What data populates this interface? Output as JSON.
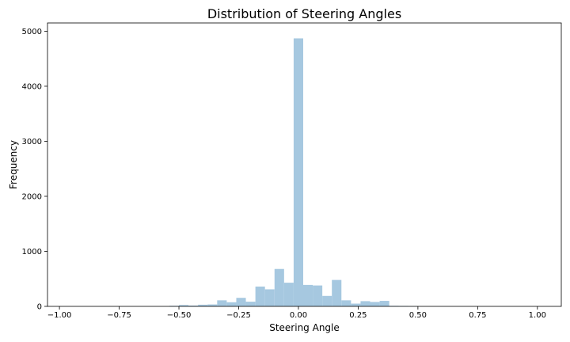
{
  "chart_data": {
    "type": "bar",
    "title": "Distribution of Steering Angles",
    "xlabel": "Steering Angle",
    "ylabel": "Frequency",
    "xlim": [
      -1.05,
      1.1
    ],
    "ylim": [
      0,
      5150
    ],
    "grid": false,
    "bar_color": "#a6c8e0",
    "bin_width": 0.04,
    "x_ticks": [
      {
        "value": -1.0,
        "label": "−1.00"
      },
      {
        "value": -0.75,
        "label": "−0.75"
      },
      {
        "value": -0.5,
        "label": "−0.50"
      },
      {
        "value": -0.25,
        "label": "−0.25"
      },
      {
        "value": 0.0,
        "label": "0.00"
      },
      {
        "value": 0.25,
        "label": "0.25"
      },
      {
        "value": 0.5,
        "label": "0.50"
      },
      {
        "value": 0.75,
        "label": "0.75"
      },
      {
        "value": 1.0,
        "label": "1.00"
      }
    ],
    "y_ticks": [
      {
        "value": 0,
        "label": "0"
      },
      {
        "value": 1000,
        "label": "1000"
      },
      {
        "value": 2000,
        "label": "2000"
      },
      {
        "value": 3000,
        "label": "3000"
      },
      {
        "value": 4000,
        "label": "4000"
      },
      {
        "value": 5000,
        "label": "5000"
      }
    ],
    "bins": [
      {
        "x": -0.52,
        "value": 10
      },
      {
        "x": -0.48,
        "value": 25
      },
      {
        "x": -0.44,
        "value": 15
      },
      {
        "x": -0.4,
        "value": 30
      },
      {
        "x": -0.36,
        "value": 35
      },
      {
        "x": -0.32,
        "value": 110
      },
      {
        "x": -0.28,
        "value": 75
      },
      {
        "x": -0.24,
        "value": 155
      },
      {
        "x": -0.2,
        "value": 85
      },
      {
        "x": -0.16,
        "value": 360
      },
      {
        "x": -0.12,
        "value": 310
      },
      {
        "x": -0.08,
        "value": 680
      },
      {
        "x": -0.04,
        "value": 430
      },
      {
        "x": 0.0,
        "value": 4870
      },
      {
        "x": 0.04,
        "value": 390
      },
      {
        "x": 0.08,
        "value": 380
      },
      {
        "x": 0.12,
        "value": 190
      },
      {
        "x": 0.16,
        "value": 480
      },
      {
        "x": 0.2,
        "value": 110
      },
      {
        "x": 0.24,
        "value": 50
      },
      {
        "x": 0.28,
        "value": 95
      },
      {
        "x": 0.32,
        "value": 80
      },
      {
        "x": 0.36,
        "value": 100
      },
      {
        "x": 0.4,
        "value": 10
      },
      {
        "x": 0.44,
        "value": 8
      },
      {
        "x": 0.48,
        "value": 5
      }
    ]
  }
}
